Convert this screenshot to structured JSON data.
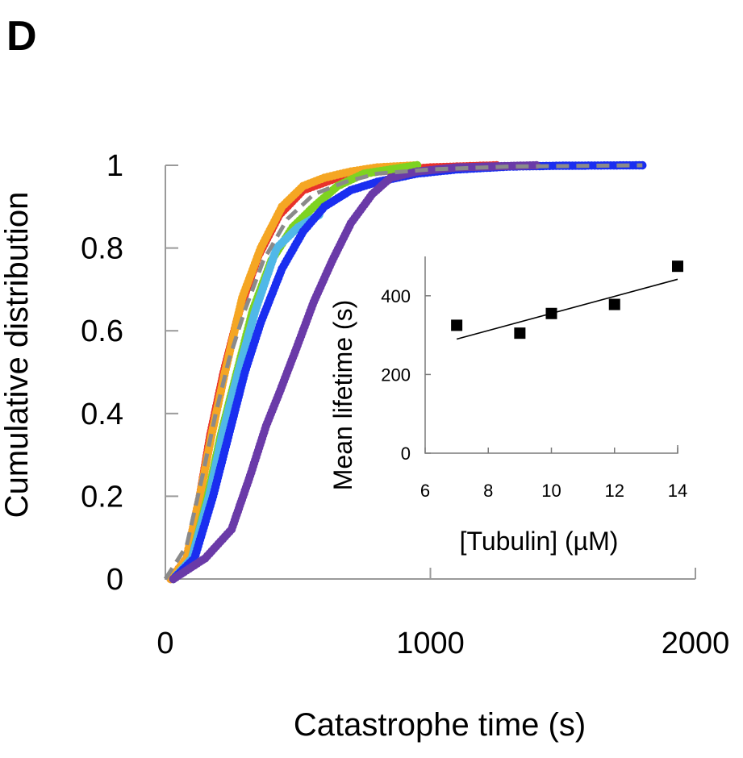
{
  "panel_label": "D",
  "chart_data": [
    {
      "type": "line",
      "xlabel": "Catastrophe time (s)",
      "ylabel": "Cumulative distribution",
      "xlim": [
        0,
        2000
      ],
      "ylim": [
        0,
        1
      ],
      "x_ticks": [
        "0",
        "1000",
        "2000"
      ],
      "y_ticks": [
        "0",
        "0.2",
        "0.4",
        "0.6",
        "0.8",
        "1"
      ],
      "grid": false,
      "series": [
        {
          "color": "#e8312b",
          "style": "dots",
          "points": [
            [
              20,
              0
            ],
            [
              80,
              0.05
            ],
            [
              130,
              0.2
            ],
            [
              170,
              0.35
            ],
            [
              220,
              0.5
            ],
            [
              280,
              0.65
            ],
            [
              350,
              0.78
            ],
            [
              430,
              0.88
            ],
            [
              520,
              0.94
            ],
            [
              650,
              0.97
            ],
            [
              800,
              0.985
            ],
            [
              1000,
              0.995
            ],
            [
              1150,
              0.998
            ],
            [
              1250,
              1.0
            ]
          ]
        },
        {
          "color": "#f5a623",
          "style": "dots",
          "points": [
            [
              20,
              0
            ],
            [
              80,
              0.05
            ],
            [
              130,
              0.2
            ],
            [
              175,
              0.35
            ],
            [
              225,
              0.5
            ],
            [
              290,
              0.68
            ],
            [
              360,
              0.8
            ],
            [
              440,
              0.9
            ],
            [
              520,
              0.95
            ],
            [
              600,
              0.97
            ],
            [
              700,
              0.985
            ],
            [
              800,
              0.995
            ],
            [
              950,
              1.0
            ]
          ]
        },
        {
          "color": "#7ed321",
          "style": "dots",
          "points": [
            [
              30,
              0
            ],
            [
              100,
              0.05
            ],
            [
              160,
              0.2
            ],
            [
              210,
              0.35
            ],
            [
              270,
              0.5
            ],
            [
              330,
              0.65
            ],
            [
              400,
              0.77
            ],
            [
              480,
              0.85
            ],
            [
              560,
              0.9
            ],
            [
              650,
              0.95
            ],
            [
              750,
              0.98
            ],
            [
              850,
              0.99
            ],
            [
              950,
              1.0
            ]
          ]
        },
        {
          "color": "#50b8e8",
          "style": "dots",
          "points": [
            [
              30,
              0
            ],
            [
              100,
              0.05
            ],
            [
              165,
              0.2
            ],
            [
              215,
              0.35
            ],
            [
              275,
              0.5
            ],
            [
              340,
              0.65
            ],
            [
              420,
              0.8
            ],
            [
              500,
              0.85
            ],
            [
              580,
              0.88
            ]
          ]
        },
        {
          "color": "#1a2ef0",
          "style": "dots",
          "points": [
            [
              30,
              0
            ],
            [
              110,
              0.05
            ],
            [
              180,
              0.2
            ],
            [
              240,
              0.35
            ],
            [
              300,
              0.5
            ],
            [
              360,
              0.62
            ],
            [
              440,
              0.75
            ],
            [
              520,
              0.84
            ],
            [
              600,
              0.9
            ],
            [
              700,
              0.94
            ],
            [
              800,
              0.96
            ],
            [
              950,
              0.98
            ],
            [
              1100,
              0.99
            ],
            [
              1300,
              0.997
            ],
            [
              1500,
              0.999
            ],
            [
              1800,
              1.0
            ]
          ]
        },
        {
          "color": "#6a3aa8",
          "style": "dots",
          "points": [
            [
              30,
              0
            ],
            [
              150,
              0.05
            ],
            [
              250,
              0.12
            ],
            [
              320,
              0.25
            ],
            [
              380,
              0.37
            ],
            [
              430,
              0.45
            ],
            [
              490,
              0.55
            ],
            [
              560,
              0.67
            ],
            [
              630,
              0.77
            ],
            [
              700,
              0.86
            ],
            [
              780,
              0.93
            ],
            [
              850,
              0.97
            ],
            [
              950,
              0.985
            ],
            [
              1100,
              0.995
            ],
            [
              1400,
              1.0
            ]
          ]
        },
        {
          "color": "#8a8a8a",
          "style": "dashed",
          "points": [
            [
              0,
              0
            ],
            [
              80,
              0.08
            ],
            [
              140,
              0.25
            ],
            [
              190,
              0.4
            ],
            [
              240,
              0.53
            ],
            [
              300,
              0.65
            ],
            [
              370,
              0.77
            ],
            [
              460,
              0.87
            ],
            [
              560,
              0.93
            ],
            [
              680,
              0.96
            ],
            [
              800,
              0.98
            ],
            [
              1000,
              0.99
            ],
            [
              1300,
              0.997
            ],
            [
              1800,
              1.0
            ]
          ]
        }
      ]
    },
    {
      "type": "scatter",
      "xlabel": "[Tubulin] (µM)",
      "ylabel": "Mean lifetime (s)",
      "xlim": [
        6,
        14
      ],
      "ylim": [
        0,
        500
      ],
      "x_ticks": [
        "6",
        "8",
        "10",
        "12",
        "14"
      ],
      "y_ticks": [
        "0",
        "200",
        "400"
      ],
      "points": [
        [
          7,
          325
        ],
        [
          9,
          305
        ],
        [
          10,
          355
        ],
        [
          12,
          378
        ],
        [
          14,
          475
        ]
      ],
      "fit": [
        [
          7,
          290
        ],
        [
          14,
          442
        ]
      ]
    }
  ]
}
